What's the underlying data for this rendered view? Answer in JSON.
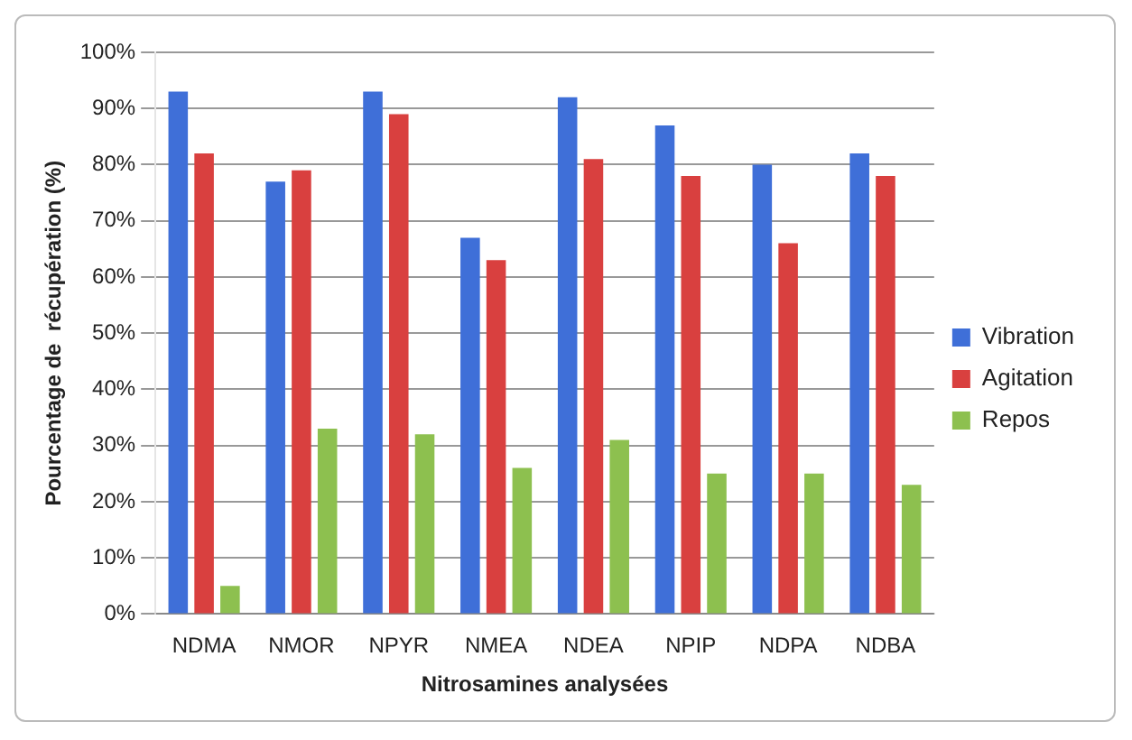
{
  "chart_data": {
    "type": "bar",
    "xlabel": "Nitrosamines analysées",
    "ylabel": "Pourcentage de  récupération (%)",
    "categories": [
      "NDMA",
      "NMOR",
      "NPYR",
      "NMEA",
      "NDEA",
      "NPIP",
      "NDPA",
      "NDBA"
    ],
    "series": [
      {
        "name": "Vibration",
        "color": "#3f6fd8",
        "values": [
          93,
          77,
          93,
          67,
          92,
          87,
          80,
          82
        ]
      },
      {
        "name": "Agitation",
        "color": "#d9403f",
        "values": [
          82,
          79,
          89,
          63,
          81,
          78,
          66,
          78
        ]
      },
      {
        "name": "Repos",
        "color": "#8dc04f",
        "values": [
          5,
          33,
          32,
          26,
          31,
          25,
          25,
          23
        ]
      }
    ],
    "ylim": [
      0,
      100
    ],
    "yticks": [
      {
        "value": 0,
        "label": "0%"
      },
      {
        "value": 10,
        "label": "10%"
      },
      {
        "value": 20,
        "label": "20%"
      },
      {
        "value": 30,
        "label": "30%"
      },
      {
        "value": 40,
        "label": "40%"
      },
      {
        "value": 50,
        "label": "50%"
      },
      {
        "value": 60,
        "label": "60%"
      },
      {
        "value": 70,
        "label": "70%"
      },
      {
        "value": 80,
        "label": "80%"
      },
      {
        "value": 90,
        "label": "90%"
      },
      {
        "value": 100,
        "label": "100%"
      }
    ],
    "grid": "y",
    "legend": "right"
  }
}
